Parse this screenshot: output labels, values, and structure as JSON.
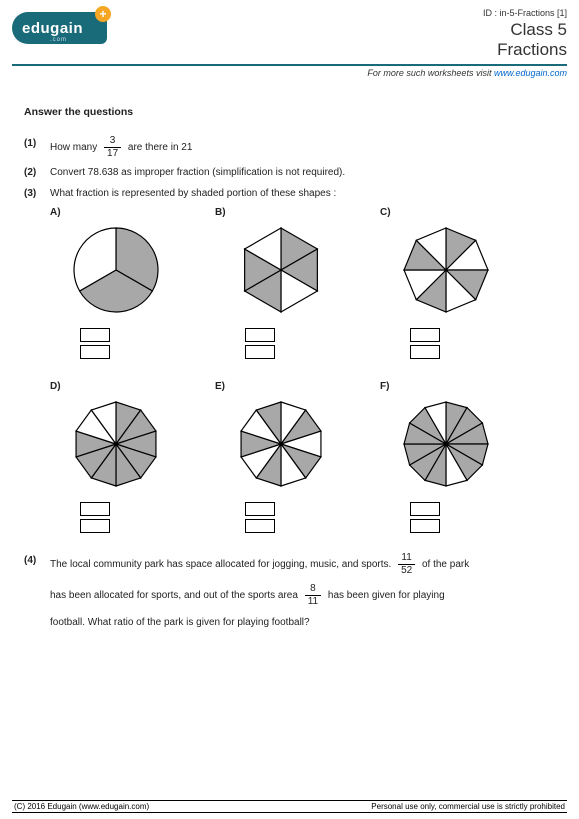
{
  "header": {
    "id_label": "ID : in-5-Fractions [1]",
    "class_label": "Class 5",
    "topic_label": "Fractions",
    "logo_text": "edugain",
    "logo_sub": ".com",
    "logo_plus": "+",
    "sub_text": "For more such worksheets visit ",
    "sub_link": "www.edugain.com"
  },
  "colors": {
    "brand": "#1a6b7a",
    "accent": "#f5a623",
    "link": "#0066cc",
    "shape_fill": "#a8a8a8",
    "shape_empty": "#ffffff",
    "shape_stroke": "#000000"
  },
  "section_title": "Answer the questions",
  "q1": {
    "num": "(1)",
    "pre": "How many ",
    "frac_n": "3",
    "frac_d": "17",
    "post": " are there in 21"
  },
  "q2": {
    "num": "(2)",
    "text": "Convert 78.638 as improper fraction (simplification is not required)."
  },
  "q3": {
    "num": "(3)",
    "text": "What fraction is represented by shaded portion of these shapes :",
    "shapes": [
      {
        "label": "A)",
        "type": "circle",
        "sectors": 3,
        "shaded": [
          0,
          1
        ],
        "radius": 42
      },
      {
        "label": "B)",
        "type": "hexagon",
        "sectors": 6,
        "shaded": [
          0,
          1,
          3,
          4
        ],
        "radius": 42
      },
      {
        "label": "C)",
        "type": "octagon",
        "sectors": 8,
        "shaded": [
          0,
          2,
          4,
          6
        ],
        "radius": 42
      },
      {
        "label": "D)",
        "type": "decagon",
        "sectors": 10,
        "shaded": [
          0,
          1,
          2,
          3,
          4,
          5,
          6,
          7
        ],
        "radius": 42
      },
      {
        "label": "E)",
        "type": "decagon",
        "sectors": 10,
        "shaded": [
          1,
          3,
          5,
          7,
          9
        ],
        "radius": 42
      },
      {
        "label": "F)",
        "type": "dodecagon",
        "sectors": 12,
        "shaded": [
          0,
          1,
          2,
          3,
          4,
          6,
          7,
          8,
          9,
          10
        ],
        "radius": 42
      }
    ]
  },
  "q4": {
    "num": "(4)",
    "t1": "The local community park has space allocated for jogging, music, and sports. ",
    "f1_n": "11",
    "f1_d": "52",
    "t2": " of the park",
    "t3": "has been allocated for sports, and out of the sports area ",
    "f2_n": "8",
    "f2_d": "11",
    "t4": " has been given for playing",
    "t5": "football. What ratio of the park is given for playing football?"
  },
  "footer": {
    "left": "(C) 2016 Edugain (www.edugain.com)",
    "right": "Personal use only, commercial use is strictly prohibited"
  }
}
